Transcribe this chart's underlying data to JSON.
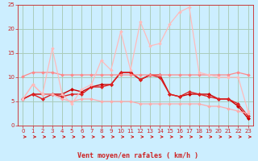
{
  "background_color": "#cceeff",
  "grid_color": "#aaccbb",
  "xlabel": "Vent moyen/en rafales ( km/h )",
  "xlim": [
    -0.5,
    23.5
  ],
  "ylim": [
    0,
    25
  ],
  "xticks": [
    0,
    1,
    2,
    3,
    4,
    5,
    6,
    7,
    8,
    9,
    10,
    11,
    12,
    13,
    14,
    15,
    16,
    17,
    18,
    19,
    20,
    21,
    22,
    23
  ],
  "yticks": [
    0,
    5,
    10,
    15,
    20,
    25
  ],
  "series": [
    {
      "name": "line_dark_red_main",
      "color": "#cc0000",
      "lw": 1.0,
      "marker": "D",
      "ms": 2.0,
      "y": [
        5.5,
        6.5,
        6.5,
        6.5,
        6.5,
        7.5,
        7.0,
        8.0,
        8.5,
        8.5,
        11.0,
        11.0,
        9.5,
        10.5,
        10.5,
        6.5,
        6.0,
        6.5,
        6.5,
        6.5,
        5.5,
        5.5,
        4.0,
        1.5
      ]
    },
    {
      "name": "line_red2",
      "color": "#dd2222",
      "lw": 1.0,
      "marker": "D",
      "ms": 2.0,
      "y": [
        5.5,
        6.5,
        5.5,
        6.5,
        6.0,
        6.5,
        6.5,
        8.0,
        8.0,
        8.5,
        11.0,
        11.0,
        9.5,
        10.5,
        10.0,
        6.5,
        6.0,
        7.0,
        6.5,
        6.0,
        5.5,
        5.5,
        4.5,
        2.0
      ]
    },
    {
      "name": "line_flat_pink",
      "color": "#ff8888",
      "lw": 0.9,
      "marker": "D",
      "ms": 1.8,
      "y": [
        10.2,
        11.0,
        11.0,
        11.0,
        10.5,
        10.5,
        10.5,
        10.5,
        10.5,
        10.5,
        10.5,
        10.5,
        10.5,
        10.5,
        10.5,
        10.5,
        10.5,
        10.5,
        10.5,
        10.5,
        10.5,
        10.5,
        11.0,
        10.5
      ]
    },
    {
      "name": "line_decreasing_light",
      "color": "#ffaaaa",
      "lw": 0.9,
      "marker": "D",
      "ms": 1.8,
      "y": [
        5.5,
        8.5,
        6.5,
        6.5,
        5.5,
        5.0,
        5.5,
        5.5,
        5.0,
        5.0,
        5.0,
        5.0,
        4.5,
        4.5,
        4.5,
        4.5,
        4.5,
        4.5,
        4.5,
        4.0,
        4.0,
        3.5,
        3.0,
        2.5
      ]
    },
    {
      "name": "line_spiky_light",
      "color": "#ffbbbb",
      "lw": 0.9,
      "marker": "D",
      "ms": 1.8,
      "y": [
        5.5,
        8.5,
        6.5,
        16.0,
        6.5,
        4.5,
        7.5,
        8.5,
        13.5,
        11.5,
        19.5,
        11.5,
        21.5,
        16.5,
        17.0,
        21.0,
        23.5,
        24.5,
        11.0,
        10.5,
        10.0,
        10.0,
        10.0,
        3.0
      ]
    }
  ],
  "arrow_color": "#cc2222",
  "tick_color": "#cc2222",
  "label_color": "#cc2222",
  "xlabel_fontsize": 6.0,
  "tick_fontsize": 5.0
}
